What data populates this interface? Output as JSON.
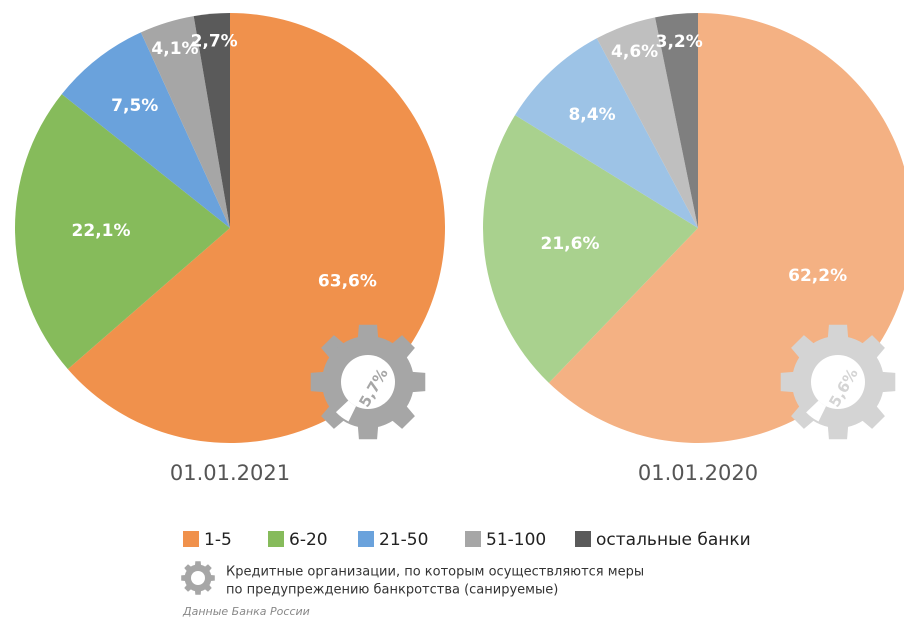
{
  "chart_data": [
    {
      "type": "pie",
      "title": "01.01.2021",
      "values": [
        63.6,
        22.1,
        7.5,
        4.1,
        2.7
      ],
      "value_labels": [
        "63,6%",
        "22,1%",
        "7,5%",
        "4,1%",
        "2,7%"
      ],
      "colors": [
        "#f0914c",
        "#86bb5b",
        "#6aa2dc",
        "#a6a6a6",
        "#5a5a5a"
      ],
      "gear_value": 5.7,
      "gear_label": "5,7%",
      "gear_color": "#a6a6a6"
    },
    {
      "type": "pie",
      "title": "01.01.2020",
      "values": [
        62.2,
        21.6,
        8.4,
        4.6,
        3.2
      ],
      "value_labels": [
        "62,2%",
        "21,6%",
        "8,4%",
        "4,6%",
        "3,2%"
      ],
      "colors": [
        "#f4b183",
        "#a9d18e",
        "#9dc3e6",
        "#bfbfbf",
        "#7f7f7f"
      ],
      "gear_value": 5.6,
      "gear_label": "5,6%",
      "gear_color": "#d4d4d4"
    }
  ],
  "legend": {
    "categories": [
      "1-5",
      "6-20",
      "21-50",
      "51-100",
      "остальные банки"
    ],
    "colors": [
      "#f0914c",
      "#86bb5b",
      "#6aa2dc",
      "#a6a6a6",
      "#5a5a5a"
    ]
  },
  "note": [
    "Кредитные организации, по которым осуществляются меры",
    "по предупреждению банкротства (санируемые)"
  ],
  "source": "Данные Банка России"
}
